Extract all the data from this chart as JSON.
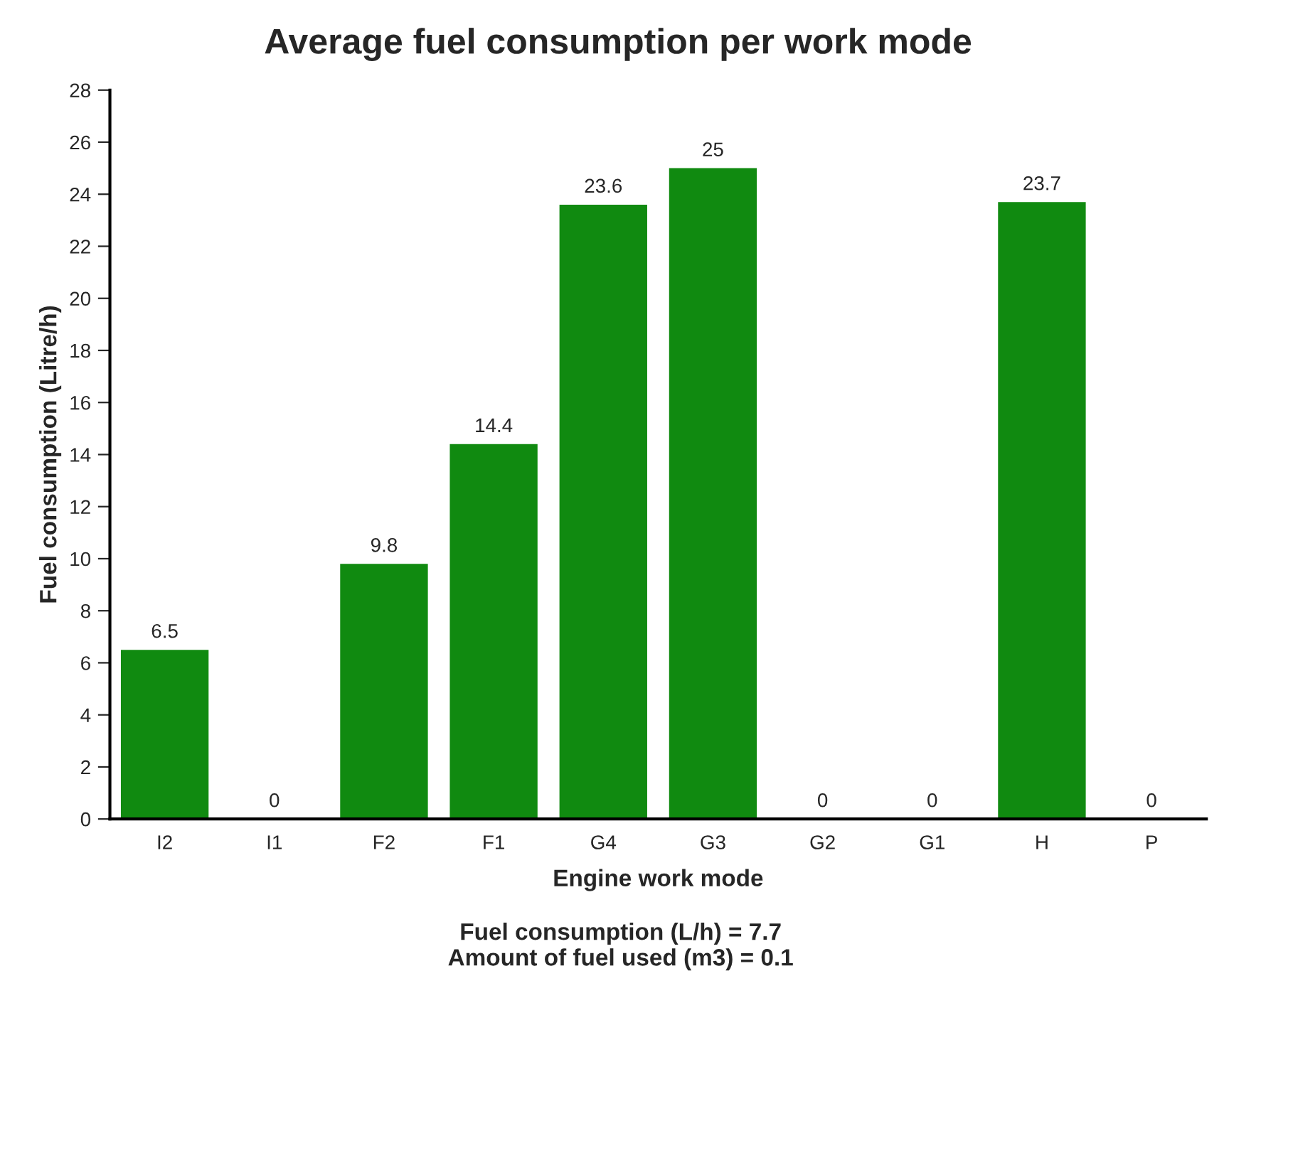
{
  "chart_data": {
    "type": "bar",
    "title": "Average fuel consumption per work mode",
    "xlabel": "Engine work mode",
    "ylabel": "Fuel consumption (Litre/h)",
    "categories": [
      "I2",
      "I1",
      "F2",
      "F1",
      "G4",
      "G3",
      "G2",
      "G1",
      "H",
      "P"
    ],
    "values": [
      6.5,
      0,
      9.8,
      14.4,
      23.6,
      25,
      0,
      0,
      23.7,
      0
    ],
    "color": "#108a10",
    "ylim": [
      0,
      28
    ],
    "yticks": [
      0,
      2,
      4,
      6,
      8,
      10,
      12,
      14,
      16,
      18,
      20,
      22,
      24,
      26,
      28
    ],
    "data_labels": true,
    "grid": false,
    "legend": false,
    "annotations": [
      "Fuel consumption (L/h) = 7.7",
      "Amount of fuel used (m3) = 0.1"
    ]
  }
}
